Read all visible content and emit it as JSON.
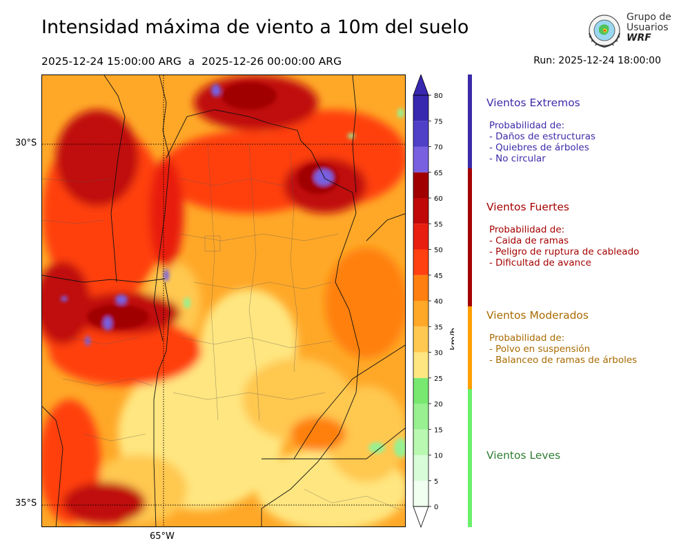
{
  "title": "Intensidad máxima de viento a 10m del suelo",
  "period": {
    "start": "2025-12-24 15:00:00 ARG",
    "separator": "a",
    "end": "2025-12-26 00:00:00 ARG"
  },
  "run": "Run: 2025-12-24 18:00:00",
  "logo": {
    "line1": "Grupo de",
    "line2": "Usuarios",
    "line3": "WRF"
  },
  "map": {
    "lat_labels": [
      "30°S",
      "35°S"
    ],
    "lon_labels": [
      "65°W"
    ]
  },
  "colorbar": {
    "unit": "km/h",
    "ticks": [
      0,
      5,
      10,
      15,
      20,
      25,
      30,
      35,
      40,
      45,
      50,
      55,
      60,
      65,
      70,
      75,
      80
    ],
    "colors": [
      "#f0fff0",
      "#d8fcd8",
      "#b8f8b0",
      "#98f090",
      "#78e870",
      "#ffe680",
      "#ffc850",
      "#ffa828",
      "#ff8010",
      "#ff4010",
      "#e81e10",
      "#c00808",
      "#a00000",
      "#7860e0",
      "#5040c8",
      "#3828b0"
    ],
    "min": 0,
    "max": 80
  },
  "legend": [
    {
      "heading": "Vientos Extremos",
      "color": "#3b2aa8",
      "range_kmh": [
        65,
        82
      ],
      "lines": [
        "Probabilidad de:",
        "- Daños de estructuras",
        "- Quiebres de árboles",
        "- No circular"
      ]
    },
    {
      "heading": "Vientos Fuertes",
      "color": "#a50000",
      "range_kmh": [
        40,
        65
      ],
      "lines": [
        "Probabilidad de:",
        "- Caida de ramas",
        "- Peligro de ruptura de cableado",
        "- Dificultad de avance"
      ]
    },
    {
      "heading": "Vientos Moderados",
      "color": "#a86a00",
      "bar_color": "#ff9f00",
      "range_kmh": [
        25,
        40
      ],
      "lines": [
        "Probabilidad de:",
        "- Polvo en suspensión",
        "- Balanceo de ramas de árboles"
      ]
    },
    {
      "heading": "Vientos Leves",
      "color": "#2e7d32",
      "bar_color": "#6cf06c",
      "range_kmh": [
        0,
        25
      ],
      "lines": []
    }
  ]
}
